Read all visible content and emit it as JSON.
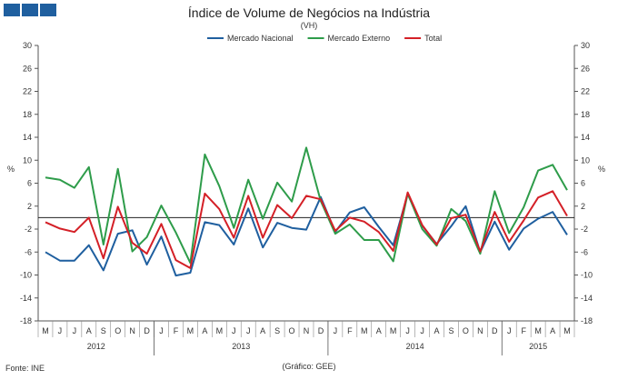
{
  "chart_data": {
    "type": "line",
    "title": "Índice de Volume de Negócios na Indústria",
    "subtitle": "(VH)",
    "ylabel_left": "%",
    "ylabel_right": "%",
    "ylim": [
      -18,
      30
    ],
    "yticks": [
      -18,
      -14,
      -10,
      -6,
      -2,
      2,
      6,
      10,
      14,
      18,
      22,
      26,
      30
    ],
    "categories": [
      "M",
      "J",
      "J",
      "A",
      "S",
      "O",
      "N",
      "D",
      "J",
      "F",
      "M",
      "A",
      "M",
      "J",
      "J",
      "A",
      "S",
      "O",
      "N",
      "D",
      "J",
      "F",
      "M",
      "A",
      "M",
      "J",
      "J",
      "A",
      "S",
      "O",
      "N",
      "D",
      "J",
      "F",
      "M",
      "A",
      "M"
    ],
    "years": [
      {
        "label": "2012",
        "start": 0,
        "end": 7
      },
      {
        "label": "2013",
        "start": 8,
        "end": 19
      },
      {
        "label": "2014",
        "start": 20,
        "end": 31
      },
      {
        "label": "2015",
        "start": 32,
        "end": 36
      }
    ],
    "series": [
      {
        "name": "Mercado Nacional",
        "color": "#1f5f9f",
        "values": [
          -6,
          -7.5,
          -7.5,
          -4.8,
          -9.2,
          -2.8,
          -2.2,
          -8.2,
          -3.3,
          -10.1,
          -9.6,
          -0.8,
          -1.3,
          -4.7,
          1.6,
          -5.2,
          -0.9,
          -1.8,
          -2.1,
          3.6,
          -2.5,
          0.9,
          1.8,
          -1.6,
          -4.8,
          4.1,
          -1.4,
          -4.6,
          -1.5,
          2,
          -6,
          -0.7,
          -5.6,
          -1.9,
          -0.2,
          1,
          -3
        ]
      },
      {
        "name": "Mercado Externo",
        "color": "#2e9c4a",
        "values": [
          7,
          6.6,
          5.2,
          8.8,
          -4.7,
          8.5,
          -5.9,
          -3.4,
          2.1,
          -2.6,
          -7.9,
          11,
          5.5,
          -1.8,
          6.6,
          -0.2,
          6.1,
          2.8,
          12.2,
          2.9,
          -2.8,
          -1.2,
          -3.9,
          -3.9,
          -7.6,
          4.2,
          -2,
          -4.9,
          1.5,
          -0.6,
          -6.3,
          4.6,
          -2.7,
          1.8,
          8.2,
          9.2,
          4.8
        ]
      },
      {
        "name": "Total",
        "color": "#d42027",
        "values": [
          -0.8,
          -1.9,
          -2.5,
          0,
          -7.1,
          1.9,
          -4.4,
          -6.3,
          -1.1,
          -7.4,
          -8.8,
          4.2,
          1.5,
          -3.5,
          3.8,
          -3.5,
          2.2,
          -0.1,
          3.8,
          3.2,
          -2.3,
          0,
          -0.7,
          -2.5,
          -5.8,
          4.4,
          -1.3,
          -4.7,
          -0.1,
          0.5,
          -5.9,
          1,
          -4.2,
          -0.5,
          3.5,
          4.6,
          0.3
        ]
      }
    ]
  },
  "footer": {
    "source": "Fonte: INE",
    "note": "(Gráfico: GEE)"
  },
  "colors": {
    "logo": "#1f5f9f",
    "axis": "#333333",
    "zero_line": "#222222"
  }
}
